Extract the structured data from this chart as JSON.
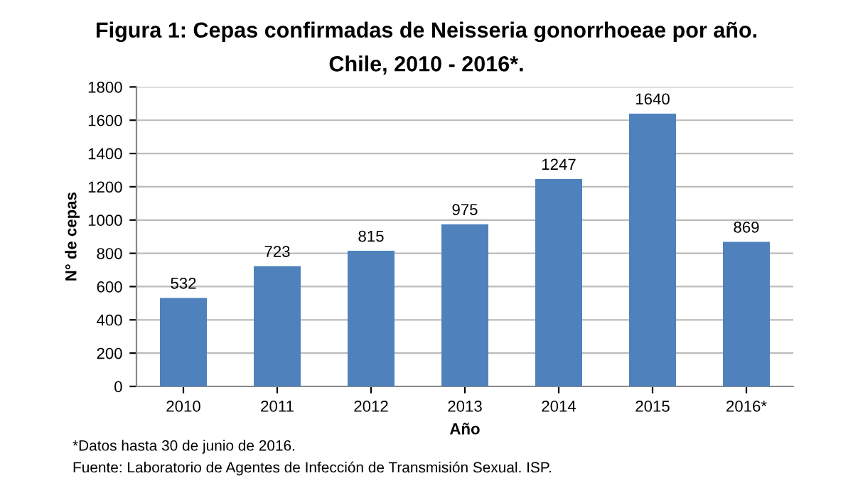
{
  "chart_data": {
    "type": "bar",
    "title": "Figura 1: Cepas confirmadas de Neisseria gonorrhoeae por año.",
    "subtitle": "Chile, 2010 - 2016*.",
    "xlabel": "Año",
    "ylabel": "N° de cepas",
    "categories": [
      "2010",
      "2011",
      "2012",
      "2013",
      "2014",
      "2015",
      "2016*"
    ],
    "values": [
      532,
      723,
      815,
      975,
      1247,
      1640,
      869
    ],
    "color": "#4f81bd",
    "ylim": [
      0,
      1800
    ],
    "yticks": [
      0,
      200,
      400,
      600,
      800,
      1000,
      1200,
      1400,
      1600,
      1800
    ],
    "grid": "y",
    "data_labels": true,
    "annotations": [
      "*Datos hasta 30 de junio de 2016.",
      "Fuente: Laboratorio de Agentes de Infección de Transmisión Sexual. ISP."
    ]
  }
}
